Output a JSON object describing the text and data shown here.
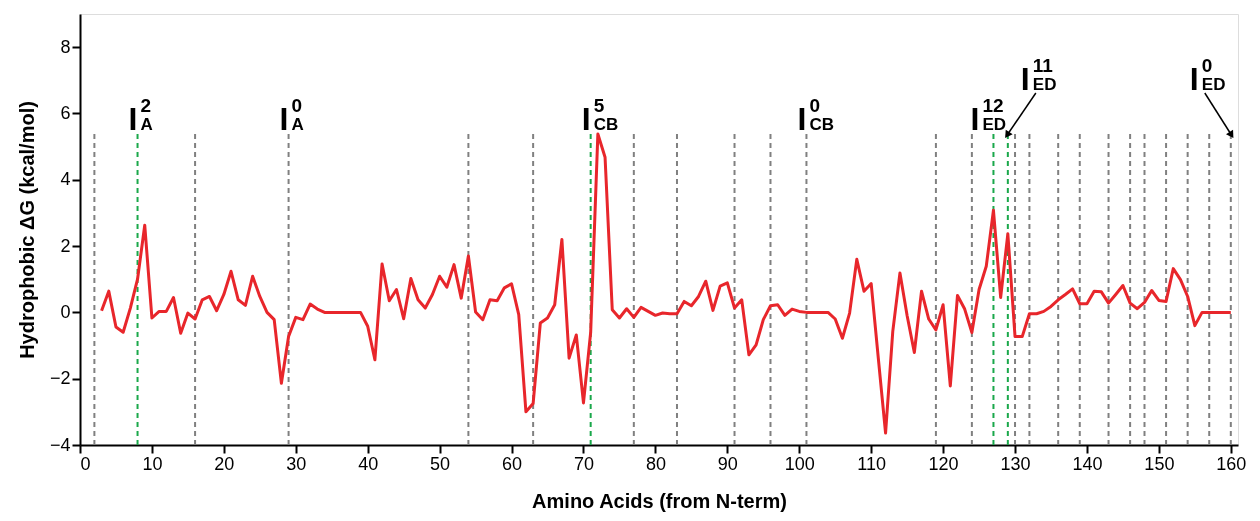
{
  "chart_data": {
    "type": "line",
    "xlabel": "Amino Acids (from N-term)",
    "ylabel": "Hydrophobic ΔG (kcal/mol)",
    "x": [
      3,
      4,
      5,
      6,
      7,
      8,
      9,
      10,
      11,
      12,
      13,
      14,
      15,
      16,
      17,
      18,
      19,
      20,
      21,
      22,
      23,
      24,
      25,
      26,
      27,
      28,
      29,
      30,
      31,
      32,
      33,
      34,
      35,
      36,
      37,
      38,
      39,
      40,
      41,
      42,
      43,
      44,
      45,
      46,
      47,
      48,
      49,
      50,
      51,
      52,
      53,
      54,
      55,
      56,
      57,
      58,
      59,
      60,
      61,
      62,
      63,
      64,
      65,
      66,
      67,
      68,
      69,
      70,
      71,
      72,
      73,
      74,
      75,
      76,
      77,
      78,
      79,
      80,
      81,
      82,
      83,
      84,
      85,
      86,
      87,
      88,
      89,
      90,
      91,
      92,
      93,
      94,
      95,
      96,
      97,
      98,
      99,
      100,
      101,
      102,
      103,
      104,
      105,
      106,
      107,
      108,
      109,
      110,
      111,
      112,
      113,
      114,
      115,
      116,
      117,
      118,
      119,
      120,
      121,
      122,
      123,
      124,
      125,
      126,
      127,
      128,
      129,
      130,
      131,
      132,
      133,
      134,
      135,
      136,
      137,
      138,
      139,
      140,
      141,
      142,
      143,
      144,
      145,
      146,
      147,
      148,
      149,
      150,
      151,
      152,
      153,
      154,
      155,
      156,
      157,
      158,
      159,
      160
    ],
    "series": [
      {
        "color": "#e8262b",
        "line_style": "solid",
        "values": [
          0.05,
          0.64,
          -0.44,
          -0.6,
          0.13,
          1.0,
          2.63,
          -0.17,
          0.03,
          0.03,
          0.45,
          -0.63,
          -0.02,
          -0.2,
          0.38,
          0.48,
          0.05,
          0.54,
          1.24,
          0.38,
          0.21,
          1.09,
          0.48,
          0.0,
          -0.22,
          -2.14,
          -0.73,
          -0.15,
          -0.22,
          0.25,
          0.1,
          0.0,
          0.0,
          0.0,
          0.0,
          0.0,
          0.0,
          -0.42,
          -1.43,
          1.46,
          0.35,
          0.69,
          -0.19,
          1.02,
          0.38,
          0.13,
          0.54,
          1.09,
          0.76,
          1.44,
          0.43,
          1.7,
          0.01,
          -0.22,
          0.38,
          0.35,
          0.74,
          0.86,
          -0.07,
          -3.0,
          -2.75,
          -0.32,
          -0.17,
          0.23,
          2.2,
          -1.38,
          -0.68,
          -2.73,
          -0.6,
          5.38,
          4.68,
          0.08,
          -0.17,
          0.11,
          -0.15,
          0.15,
          0.03,
          -0.09,
          -0.02,
          -0.04,
          -0.04,
          0.33,
          0.2,
          0.48,
          0.94,
          0.06,
          0.79,
          0.89,
          0.13,
          0.38,
          -1.28,
          -0.98,
          -0.22,
          0.2,
          0.23,
          -0.09,
          0.1,
          0.03,
          0.0,
          0.0,
          0.0,
          0.0,
          -0.2,
          -0.78,
          -0.02,
          1.6,
          0.64,
          0.87,
          -1.4,
          -3.64,
          -0.58,
          1.19,
          -0.1,
          -1.21,
          0.64,
          -0.2,
          -0.53,
          0.23,
          -2.22,
          0.51,
          0.1,
          -0.61,
          0.69,
          1.39,
          3.08,
          0.45,
          2.37,
          -0.73,
          -0.73,
          -0.04,
          -0.04,
          0.03,
          0.18,
          0.38,
          0.54,
          0.71,
          0.26,
          0.26,
          0.64,
          0.62,
          0.28,
          0.54,
          0.81,
          0.28,
          0.11,
          0.3,
          0.66,
          0.36,
          0.33,
          1.32,
          0.99,
          0.48,
          -0.4,
          0.0,
          0.0,
          0.0,
          0.0,
          0.0
        ]
      }
    ],
    "xlim": [
      0,
      161
    ],
    "ylim": [
      -4,
      9
    ],
    "xticks": [
      0,
      10,
      20,
      30,
      40,
      50,
      60,
      70,
      80,
      90,
      100,
      110,
      120,
      130,
      140,
      150,
      160
    ],
    "yticks": [
      -4,
      -2,
      0,
      2,
      4,
      6,
      8
    ],
    "ref_lines": [
      {
        "axis": "x",
        "value": 2,
        "color": "#808080",
        "line_style": "dashed"
      },
      {
        "axis": "x",
        "value": 8,
        "color": "#1aa84b",
        "line_style": "dashed",
        "label": "I$^{2}$$_{A}$"
      },
      {
        "axis": "x",
        "value": 16,
        "color": "#808080",
        "line_style": "dashed"
      },
      {
        "axis": "x",
        "value": 29,
        "color": "#808080",
        "line_style": "dashed",
        "label": "I$^{0}$$_{A}$"
      },
      {
        "axis": "x",
        "value": 54,
        "color": "#808080",
        "line_style": "dashed"
      },
      {
        "axis": "x",
        "value": 63,
        "color": "#808080",
        "line_style": "dashed"
      },
      {
        "axis": "x",
        "value": 71,
        "color": "#1aa84b",
        "line_style": "dashed",
        "label": "I$^{5}$$_{CB}$"
      },
      {
        "axis": "x",
        "value": 77,
        "color": "#808080",
        "line_style": "dashed"
      },
      {
        "axis": "x",
        "value": 83,
        "color": "#808080",
        "line_style": "dashed"
      },
      {
        "axis": "x",
        "value": 91,
        "color": "#808080",
        "line_style": "dashed"
      },
      {
        "axis": "x",
        "value": 96,
        "color": "#808080",
        "line_style": "dashed"
      },
      {
        "axis": "x",
        "value": 101,
        "color": "#808080",
        "line_style": "dashed",
        "label": "I$^{0}$$_{CB}$"
      },
      {
        "axis": "x",
        "value": 119,
        "color": "#808080",
        "line_style": "dashed"
      },
      {
        "axis": "x",
        "value": 124,
        "color": "#808080",
        "line_style": "dashed"
      },
      {
        "axis": "x",
        "value": 127,
        "color": "#1aa84b",
        "line_style": "dashed",
        "label": "I$^{12}$$_{ED}$"
      },
      {
        "axis": "x",
        "value": 129,
        "color": "#1aa84b",
        "line_style": "dashed",
        "label": "I$^{11}$$_{ED}$"
      },
      {
        "axis": "x",
        "value": 130,
        "color": "#808080",
        "line_style": "dashed"
      },
      {
        "axis": "x",
        "value": 132,
        "color": "#808080",
        "line_style": "dashed"
      },
      {
        "axis": "x",
        "value": 136,
        "color": "#808080",
        "line_style": "dashed"
      },
      {
        "axis": "x",
        "value": 139,
        "color": "#808080",
        "line_style": "dashed"
      },
      {
        "axis": "x",
        "value": 143,
        "color": "#808080",
        "line_style": "dashed"
      },
      {
        "axis": "x",
        "value": 146,
        "color": "#808080",
        "line_style": "dashed"
      },
      {
        "axis": "x",
        "value": 148,
        "color": "#808080",
        "line_style": "dashed"
      },
      {
        "axis": "x",
        "value": 151,
        "color": "#808080",
        "line_style": "dashed"
      },
      {
        "axis": "x",
        "value": 154,
        "color": "#808080",
        "line_style": "dashed"
      },
      {
        "axis": "x",
        "value": 157,
        "color": "#808080",
        "line_style": "dashed"
      },
      {
        "axis": "x",
        "value": 160,
        "color": "#808080",
        "line_style": "dashed",
        "label": "I$^{0}$$_{ED}$"
      }
    ]
  }
}
